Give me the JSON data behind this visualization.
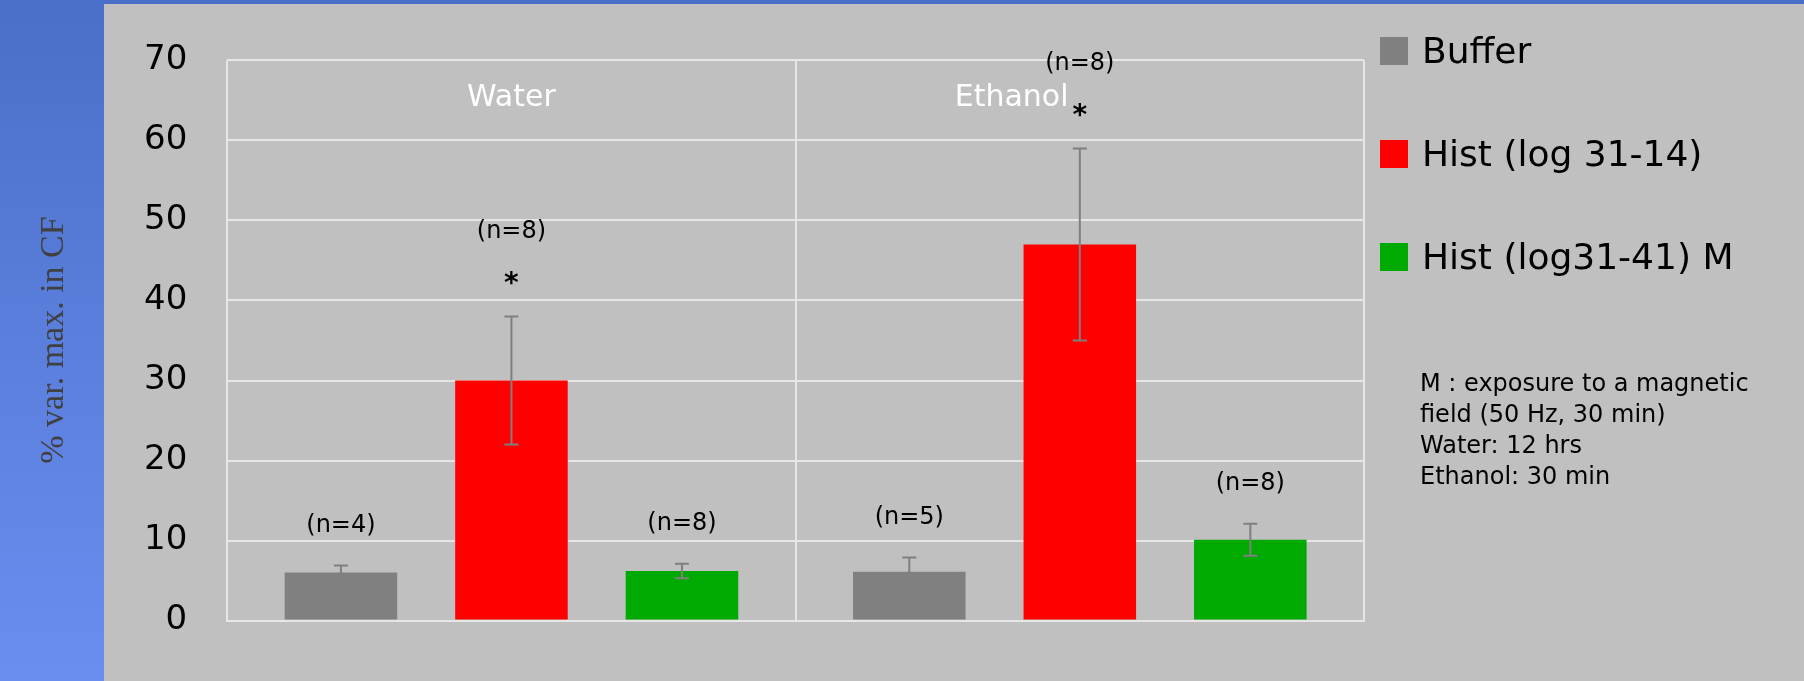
{
  "chart_data": {
    "type": "bar",
    "ylabel": "% var. max. in CF",
    "categories": [
      "Water",
      "Ethanol"
    ],
    "series": [
      {
        "name": "Buffer",
        "color": "#808080",
        "values": [
          6,
          6.1
        ],
        "errors": [
          0.9,
          1.8
        ]
      },
      {
        "name": "Hist (log 31-14)",
        "color": "#ff0000",
        "values": [
          30,
          47
        ],
        "errors": [
          8,
          12
        ]
      },
      {
        "name": "Hist (log31-41) M",
        "color": "#00aa00",
        "values": [
          6.2,
          10.1
        ],
        "errors": [
          0.9,
          2
        ]
      }
    ],
    "ylim": [
      0,
      70
    ],
    "yticks": [
      0,
      10,
      20,
      30,
      40,
      50,
      60,
      70
    ],
    "grid": true,
    "legend": "right",
    "tick_labels": "y",
    "annotations": [
      "(n=4)",
      "(n=8)",
      "(n=8)",
      "(n=5)",
      "(n=8)",
      "(n=8)",
      "*",
      "*",
      "M : exposure to a magnetic field (50 Hz, 30 min)",
      "Water: 12 hrs",
      "Ethanol: 30 min"
    ]
  }
}
